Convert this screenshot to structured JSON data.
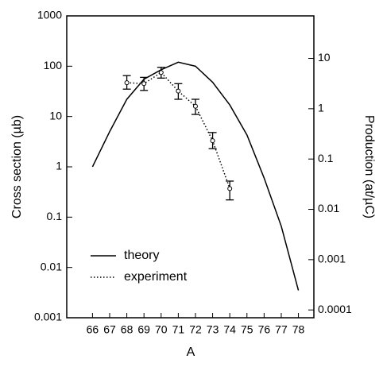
{
  "chart_data": {
    "type": "line",
    "x_label": "A",
    "y_label": "Cross section (µb)",
    "y2_label": "Production (at/µC)",
    "x": [
      66,
      67,
      68,
      69,
      70,
      71,
      72,
      73,
      74,
      75,
      76,
      77,
      78
    ],
    "xlim": [
      64.5,
      78.9
    ],
    "xticks": [
      66,
      67,
      68,
      69,
      70,
      71,
      72,
      73,
      74,
      75,
      76,
      77,
      78
    ],
    "ylim": [
      0.001,
      1000
    ],
    "yticks": [
      0.001,
      0.01,
      0.1,
      1,
      10,
      100,
      1000
    ],
    "ylog": true,
    "y2lim": [
      7e-05,
      70
    ],
    "y2ticks": [
      0.0001,
      0.001,
      0.01,
      0.1,
      1,
      10
    ],
    "y2log": true,
    "legend": "lower left",
    "series": [
      {
        "name": "theory",
        "color": "#000000",
        "style": "solid",
        "values": [
          1,
          5,
          22,
          55,
          85,
          120,
          100,
          48,
          17,
          4.3,
          0.6,
          0.066,
          0.0035
        ]
      },
      {
        "name": "experiment",
        "color": "#000000",
        "style": "dotted",
        "values": [
          null,
          null,
          47,
          45,
          75,
          32,
          16,
          3.3,
          0.37,
          null,
          null,
          null,
          null
        ],
        "low": [
          null,
          null,
          35,
          33,
          58,
          22,
          11,
          2.3,
          0.22,
          null,
          null,
          null,
          null
        ],
        "high": [
          null,
          null,
          65,
          60,
          95,
          45,
          22,
          4.8,
          0.52,
          null,
          null,
          null,
          null
        ]
      }
    ]
  }
}
